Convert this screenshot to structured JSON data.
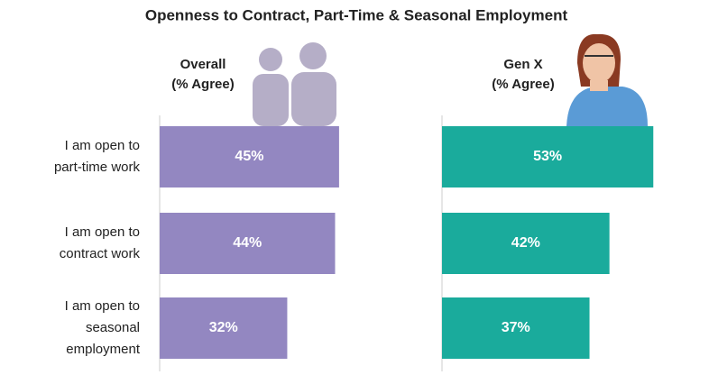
{
  "chart_data": {
    "type": "bar",
    "title": "Openness to Contract, Part-Time & Seasonal Employment",
    "categories": [
      [
        "I am open to",
        "part-time work"
      ],
      [
        "I am open to",
        "contract work"
      ],
      [
        "I am open to",
        "seasonal",
        "employment"
      ]
    ],
    "unit_label": "(% Agree)",
    "series": [
      {
        "name": "Overall",
        "color": "#9387c1",
        "values": [
          45,
          44,
          32
        ],
        "value_labels": [
          "45%",
          "44%",
          "32%"
        ]
      },
      {
        "name": "Gen X",
        "color": "#1aab9c",
        "values": [
          53,
          42,
          37
        ],
        "value_labels": [
          "53%",
          "42%",
          "37%"
        ]
      }
    ]
  }
}
